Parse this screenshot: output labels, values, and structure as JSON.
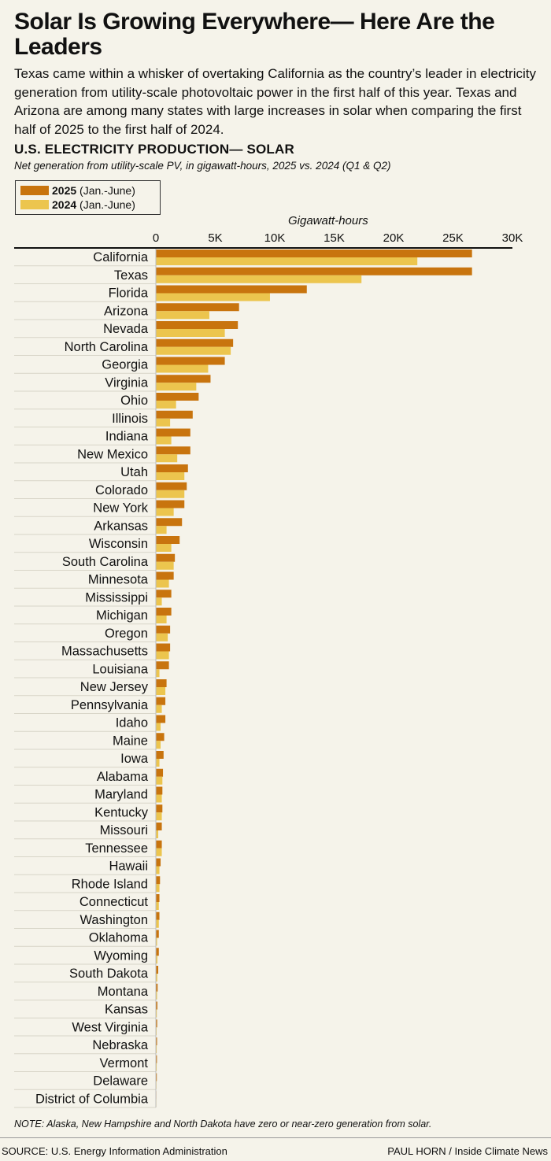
{
  "headline": "Solar Is Growing Everywhere— Here Are the Leaders",
  "intro": "Texas came within a whisker of overtaking California as the country’s leader in electricity generation from utility-scale photovoltaic power in the first half of this year. Texas and Arizona are among many states with large increases in solar when comparing the first half of 2025 to the first half of 2024.",
  "note": "NOTE: Alaska, New Hampshire and North Dakota have zero or near-zero generation from solar.",
  "source": "SOURCE: U.S. Energy Information Administration",
  "credit": "PAUL HORN / Inside Climate News",
  "legend": {
    "items": [
      {
        "year": "2025",
        "range": "(Jan.-June)",
        "color": "#c8740e"
      },
      {
        "year": "2024",
        "range": "(Jan.-June)",
        "color": "#ecc54e"
      }
    ]
  },
  "chart_data": {
    "type": "bar",
    "orientation": "horizontal",
    "title": "U.S. ELECTRICITY PRODUCTION— SOLAR",
    "subtitle": "Net generation from utility-scale PV, in gigawatt-hours, 2025 vs. 2024 (Q1 & Q2)",
    "xlabel": "Gigawatt-hours",
    "xlim": [
      0,
      30000
    ],
    "ticks": [
      0,
      5000,
      10000,
      15000,
      20000,
      25000,
      30000
    ],
    "tick_labels": [
      "0",
      "5K",
      "10K",
      "15K",
      "20K",
      "25K",
      "30K"
    ],
    "axis_position": "top",
    "grid": false,
    "legend_position": "top-left",
    "categories": [
      "California",
      "Texas",
      "Florida",
      "Arizona",
      "Nevada",
      "North Carolina",
      "Georgia",
      "Virginia",
      "Ohio",
      "Illinois",
      "Indiana",
      "New Mexico",
      "Utah",
      "Colorado",
      "New York",
      "Arkansas",
      "Wisconsin",
      "South Carolina",
      "Minnesota",
      "Mississippi",
      "Michigan",
      "Oregon",
      "Massachusetts",
      "Louisiana",
      "New Jersey",
      "Pennsylvania",
      "Idaho",
      "Maine",
      "Iowa",
      "Alabama",
      "Maryland",
      "Kentucky",
      "Missouri",
      "Tennessee",
      "Hawaii",
      "Rhode Island",
      "Connecticut",
      "Washington",
      "Oklahoma",
      "Wyoming",
      "South Dakota",
      "Montana",
      "Kansas",
      "West Virginia",
      "Nebraska",
      "Vermont",
      "Delaware",
      "District of Columbia"
    ],
    "series": [
      {
        "name": "2025 (Jan.-June)",
        "color": "#c8740e",
        "values": [
          26600,
          26600,
          12700,
          7000,
          6900,
          6500,
          5800,
          4600,
          3600,
          3100,
          2900,
          2900,
          2700,
          2600,
          2400,
          2200,
          2000,
          1600,
          1500,
          1300,
          1300,
          1200,
          1200,
          1100,
          900,
          800,
          800,
          700,
          650,
          600,
          550,
          550,
          500,
          500,
          400,
          350,
          300,
          300,
          250,
          250,
          200,
          150,
          130,
          110,
          100,
          90,
          80,
          40
        ]
      },
      {
        "name": "2024 (Jan.-June)",
        "color": "#ecc54e",
        "values": [
          22000,
          17300,
          9600,
          4500,
          5800,
          6300,
          4400,
          3400,
          1700,
          1200,
          1300,
          1800,
          2400,
          2400,
          1500,
          900,
          1300,
          1500,
          1100,
          500,
          900,
          1000,
          1100,
          300,
          800,
          500,
          400,
          400,
          300,
          550,
          500,
          500,
          200,
          500,
          300,
          300,
          250,
          250,
          100,
          130,
          120,
          100,
          80,
          60,
          70,
          70,
          50,
          20
        ]
      }
    ]
  }
}
